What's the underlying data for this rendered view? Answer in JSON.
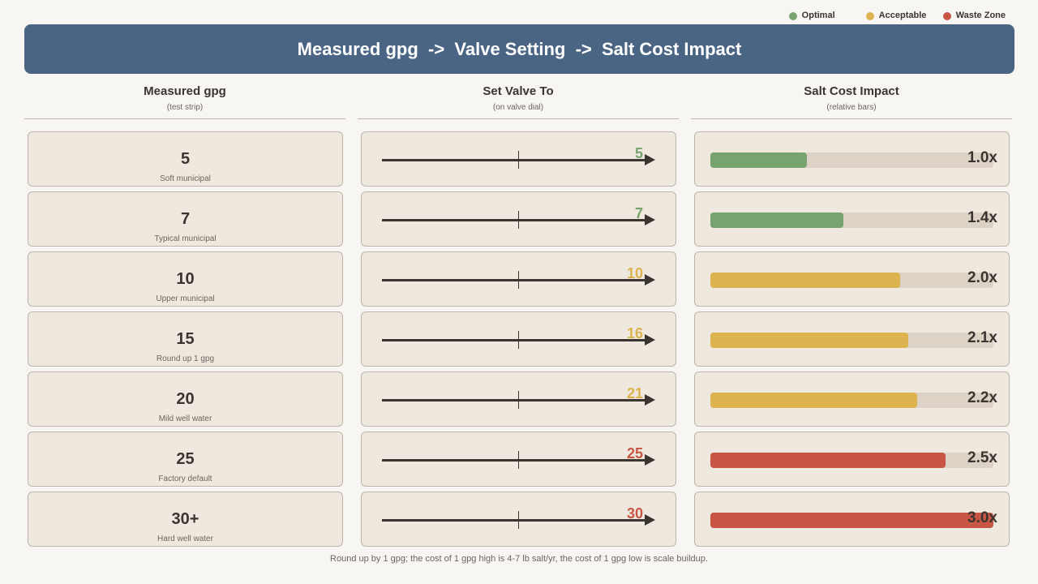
{
  "legend": [
    {
      "label": "Optimal",
      "color": "#76a36e"
    },
    {
      "label": "Acceptable",
      "color": "#dcb34e"
    },
    {
      "label": "Waste Zone",
      "color": "#c95545"
    }
  ],
  "banner": {
    "title": "Measured gpg  ->  Valve Setting  ->  Salt Cost Impact"
  },
  "columns": [
    {
      "title": "Measured gpg",
      "subtitle": "(test strip)"
    },
    {
      "title": "Set Valve To",
      "subtitle": "(on valve dial)"
    },
    {
      "title": "Salt Cost Impact",
      "subtitle": "(relative bars)"
    }
  ],
  "rows": [
    {
      "gpg": "5",
      "note": "Soft municipal",
      "valve": "5",
      "cost_label": "1.0x",
      "cost_fraction": 0.34,
      "zone": "optimal"
    },
    {
      "gpg": "7",
      "note": "Typical municipal",
      "valve": "7",
      "cost_label": "1.4x",
      "cost_fraction": 0.47,
      "zone": "optimal"
    },
    {
      "gpg": "10",
      "note": "Upper municipal",
      "valve": "10",
      "cost_label": "2.0x",
      "cost_fraction": 0.67,
      "zone": "acceptable"
    },
    {
      "gpg": "15",
      "note": "Round up 1 gpg",
      "valve": "16",
      "cost_label": "2.1x",
      "cost_fraction": 0.7,
      "zone": "acceptable"
    },
    {
      "gpg": "20",
      "note": "Mild well water",
      "valve": "21",
      "cost_label": "2.2x",
      "cost_fraction": 0.73,
      "zone": "acceptable"
    },
    {
      "gpg": "25",
      "note": "Factory default",
      "valve": "25",
      "cost_label": "2.5x",
      "cost_fraction": 0.83,
      "zone": "waste"
    },
    {
      "gpg": "30+",
      "note": "Hard well water",
      "valve": "30",
      "cost_label": "3.0x",
      "cost_fraction": 1.0,
      "zone": "waste"
    }
  ],
  "zone_colors": {
    "optimal": "#76a36e",
    "acceptable": "#dcb34e",
    "waste": "#c95545"
  },
  "footnote": "Round up by 1 gpg; the cost of 1 gpg high is 4-7 lb salt/yr, the cost of 1 gpg low is scale buildup."
}
